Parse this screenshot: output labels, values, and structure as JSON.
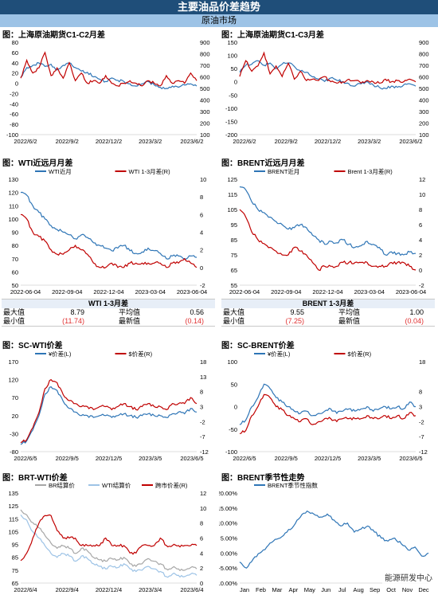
{
  "header": {
    "title": "主要油品价差趋势",
    "subtitle": "原油市场"
  },
  "colors": {
    "blue": "#2e75b6",
    "red": "#c00000",
    "lightblue": "#9dc3e6",
    "gray": "#a6a6a6",
    "header_bg": "#1f4e79",
    "subheader_bg": "#9dc3e6"
  },
  "stats": [
    {
      "title": "WTI 1-3月差",
      "max_label": "最大值",
      "max": "8.79",
      "avg_label": "平均值",
      "avg": "0.56",
      "min_label": "最小值",
      "min": "(11.74)",
      "latest_label": "最新值",
      "latest": "(0.14)"
    },
    {
      "title": "BRENT 1-3月差",
      "max_label": "最大值",
      "max": "9.55",
      "avg_label": "平均值",
      "avg": "1.00",
      "min_label": "最小值",
      "min": "(7.25)",
      "latest_label": "最新值",
      "latest": "(0.04)"
    }
  ],
  "chart_data": [
    {
      "title": "图：上海原油期货C1-C2月差",
      "type": "line",
      "xticks": [
        "2022/6/2",
        "2022/9/2",
        "2022/12/2",
        "2023/3/2",
        "2023/6/2"
      ],
      "yticks_left": [
        "80",
        "60",
        "40",
        "20",
        "0",
        "-20",
        "-40",
        "-60",
        "-80",
        "-100"
      ],
      "ylim_left": [
        -100,
        80
      ],
      "yticks_right": [
        "900",
        "800",
        "700",
        "600",
        "500",
        "400",
        "300",
        "200",
        "100"
      ],
      "ylim_right": [
        100,
        900
      ],
      "series": [
        {
          "axis": "right",
          "color": "#2e75b6",
          "values": [
            600,
            680,
            700,
            720,
            690,
            710,
            660,
            700,
            720,
            680,
            650,
            640,
            600,
            580,
            560,
            590,
            570,
            560,
            540,
            520,
            540,
            560,
            530,
            510,
            500,
            520,
            510,
            530,
            540,
            520
          ]
        },
        {
          "axis": "left",
          "color": "#c00000",
          "values": [
            10,
            45,
            20,
            30,
            60,
            15,
            30,
            10,
            40,
            5,
            20,
            0,
            5,
            0,
            15,
            0,
            -5,
            0,
            5,
            0,
            -5,
            5,
            0,
            -5,
            15,
            0,
            5,
            0,
            20,
            5
          ]
        }
      ]
    },
    {
      "title": "图：上海原油期货C1-C3月差",
      "type": "line",
      "xticks": [
        "2022/6/2",
        "2022/9/2",
        "2022/12/2",
        "2023/3/2",
        "2023/6/2"
      ],
      "yticks_left": [
        "150",
        "100",
        "50",
        "0",
        "-50",
        "-100",
        "-150",
        "-200"
      ],
      "ylim_left": [
        -200,
        150
      ],
      "yticks_right": [
        "900",
        "800",
        "700",
        "600",
        "500",
        "400",
        "300",
        "200",
        "100"
      ],
      "ylim_right": [
        100,
        900
      ],
      "series": [
        {
          "axis": "right",
          "color": "#2e75b6",
          "values": [
            640,
            700,
            710,
            740,
            700,
            720,
            670,
            710,
            720,
            690,
            650,
            640,
            600,
            580,
            560,
            590,
            570,
            560,
            540,
            520,
            540,
            560,
            530,
            510,
            500,
            520,
            510,
            530,
            540,
            520
          ]
        },
        {
          "axis": "left",
          "color": "#c00000",
          "values": [
            20,
            80,
            40,
            60,
            110,
            30,
            60,
            20,
            70,
            10,
            40,
            5,
            10,
            5,
            20,
            0,
            -5,
            0,
            10,
            5,
            -5,
            5,
            0,
            -5,
            10,
            0,
            5,
            0,
            10,
            0
          ]
        }
      ]
    },
    {
      "title": "图：WTI近远月月差",
      "type": "line",
      "legend": [
        "WTI近月",
        "WTI 1-3月差(R)"
      ],
      "xticks": [
        "2022-06-04",
        "2022-09-04",
        "2022-12-04",
        "2023-03-04",
        "2023-06-04"
      ],
      "yticks_left": [
        "130",
        "120",
        "110",
        "100",
        "90",
        "80",
        "70",
        "60",
        "50"
      ],
      "ylim_left": [
        50,
        130
      ],
      "yticks_right": [
        "10",
        "8",
        "6",
        "4",
        "2",
        "0",
        "-2"
      ],
      "ylim_right": [
        -2,
        10
      ],
      "series": [
        {
          "name": "WTI近月",
          "axis": "left",
          "color": "#2e75b6",
          "values": [
            120,
            118,
            110,
            105,
            100,
            95,
            92,
            90,
            88,
            85,
            88,
            86,
            82,
            80,
            78,
            76,
            78,
            80,
            76,
            74,
            75,
            78,
            76,
            74,
            70,
            72,
            72,
            70,
            72,
            71
          ]
        },
        {
          "name": "WTI 1-3月差(R)",
          "axis": "right",
          "color": "#c00000",
          "values": [
            6,
            5.5,
            4,
            3.5,
            3,
            2,
            1.5,
            1.5,
            2,
            2.5,
            2,
            1.5,
            0.5,
            0,
            0,
            0.5,
            0,
            0,
            0.5,
            0.5,
            0.5,
            0.5,
            0.5,
            0.5,
            0,
            0.5,
            0.5,
            1,
            0.5,
            0
          ]
        }
      ]
    },
    {
      "title": "图：BRENT近远月月差",
      "type": "line",
      "legend": [
        "BRENT近月",
        "Brent 1-3月差(R)"
      ],
      "xticks": [
        "2022-06-04",
        "2022-09-04",
        "2022-12-04",
        "2023-03-04",
        "2023-06-04"
      ],
      "yticks_left": [
        "125",
        "115",
        "105",
        "95",
        "85",
        "75",
        "65",
        "55"
      ],
      "ylim_left": [
        55,
        125
      ],
      "yticks_right": [
        "12",
        "10",
        "8",
        "6",
        "4",
        "2",
        "0",
        "-2"
      ],
      "ylim_right": [
        -2,
        12
      ],
      "series": [
        {
          "name": "BRENT近月",
          "axis": "left",
          "color": "#2e75b6",
          "values": [
            120,
            118,
            110,
            105,
            103,
            100,
            97,
            95,
            92,
            93,
            95,
            93,
            88,
            85,
            82,
            84,
            83,
            85,
            82,
            80,
            81,
            84,
            82,
            80,
            75,
            77,
            76,
            75,
            77,
            76
          ]
        },
        {
          "name": "Brent 1-3月差(R)",
          "axis": "right",
          "color": "#c00000",
          "values": [
            8,
            7,
            5,
            4,
            3.5,
            3,
            2.5,
            2,
            2,
            3,
            2.5,
            2,
            1,
            0,
            0.5,
            0.5,
            0.5,
            1,
            1,
            1,
            1,
            1,
            0.5,
            0.5,
            0.5,
            1,
            1,
            1,
            0.5,
            0
          ]
        }
      ]
    },
    {
      "title": "图：SC-WTI价差",
      "type": "line",
      "legend": [
        "¥价差(L)",
        "$价差(R)"
      ],
      "xticks": [
        "2022/6/5",
        "2022/9/5",
        "2022/12/5",
        "2023/3/5",
        "2023/6/5"
      ],
      "yticks_left": [
        "170",
        "120",
        "70",
        "20",
        "-30",
        "-80"
      ],
      "ylim_left": [
        -80,
        170
      ],
      "yticks_right": [
        "18",
        "13",
        "8",
        "3",
        "-2",
        "-7",
        "-12"
      ],
      "ylim_right": [
        -12,
        18
      ],
      "series": [
        {
          "name": "¥价差(L)",
          "axis": "left",
          "color": "#2e75b6",
          "values": [
            -60,
            -50,
            -20,
            20,
            80,
            100,
            90,
            60,
            40,
            30,
            20,
            20,
            15,
            20,
            20,
            15,
            20,
            25,
            20,
            15,
            20,
            25,
            20,
            20,
            15,
            25,
            30,
            25,
            40,
            30
          ]
        },
        {
          "name": "$价差(R)",
          "axis": "right",
          "color": "#c00000",
          "values": [
            -9,
            -8,
            -4,
            1,
            9,
            12,
            11,
            7,
            5,
            4,
            3,
            3,
            2,
            3,
            3,
            2,
            3,
            4,
            3,
            2,
            3,
            4,
            3,
            3,
            2,
            4,
            4,
            4,
            6,
            4
          ]
        }
      ]
    },
    {
      "title": "图：SC-BRENT价差",
      "type": "line",
      "legend": [
        "¥价差(L)",
        "$价差(R)"
      ],
      "xticks": [
        "2022/6/5",
        "2022/9/5",
        "2022/12/5",
        "2023/3/5",
        "2023/6/5"
      ],
      "yticks_left": [
        "100",
        "50",
        "0",
        "-50",
        "-100"
      ],
      "ylim_left": [
        -100,
        100
      ],
      "yticks_right": [
        "18",
        "8",
        "3",
        "-2",
        "-7",
        "-12"
      ],
      "ylim_right": [
        -12,
        18
      ],
      "series": [
        {
          "name": "¥价差(L)",
          "axis": "left",
          "color": "#2e75b6",
          "values": [
            -40,
            -30,
            0,
            20,
            50,
            40,
            20,
            10,
            0,
            -10,
            -15,
            -10,
            -20,
            -15,
            -10,
            -5,
            -15,
            -10,
            -5,
            -10,
            -5,
            0,
            -10,
            -5,
            0,
            -5,
            0,
            -5,
            10,
            0
          ]
        },
        {
          "name": "$价差(R)",
          "axis": "right",
          "color": "#c00000",
          "values": [
            -6,
            -5,
            0,
            3,
            7,
            6,
            3,
            2,
            0,
            -1,
            -2,
            -1,
            -3,
            -2,
            -1,
            -1,
            -2,
            -1,
            -1,
            -1,
            -1,
            0,
            -1,
            -1,
            0,
            -1,
            0,
            -1,
            1,
            0
          ]
        }
      ]
    },
    {
      "title": "图：BRT-WTI价差",
      "type": "line",
      "legend": [
        "BR结算价",
        "WTI结算价",
        "跨市价差(R)"
      ],
      "xticks": [
        "2022/6/4",
        "2022/9/4",
        "2022/12/4",
        "2023/3/4",
        "2023/6/4"
      ],
      "yticks_left": [
        "135",
        "125",
        "115",
        "105",
        "95",
        "85",
        "75",
        "65"
      ],
      "ylim_left": [
        65,
        135
      ],
      "yticks_right": [
        "12",
        "10",
        "8",
        "6",
        "4",
        "2",
        "0"
      ],
      "ylim_right": [
        0,
        12
      ],
      "series": [
        {
          "name": "BR结算价",
          "axis": "left",
          "color": "#a6a6a6",
          "values": [
            122,
            118,
            112,
            108,
            102,
            96,
            92,
            94,
            92,
            88,
            92,
            90,
            85,
            83,
            82,
            84,
            83,
            85,
            80,
            78,
            80,
            84,
            82,
            80,
            76,
            77,
            76,
            75,
            77,
            76
          ]
        },
        {
          "name": "WTI结算价",
          "axis": "left",
          "color": "#9dc3e6",
          "values": [
            118,
            114,
            105,
            100,
            94,
            88,
            85,
            88,
            86,
            82,
            86,
            84,
            80,
            78,
            76,
            78,
            77,
            80,
            76,
            74,
            75,
            78,
            76,
            74,
            70,
            72,
            71,
            70,
            72,
            71
          ]
        },
        {
          "name": "跨市价差(R)",
          "axis": "right",
          "color": "#c00000",
          "values": [
            3,
            4,
            6,
            8,
            9,
            9,
            7,
            6,
            6,
            6,
            5,
            5,
            5,
            5,
            6,
            5,
            5,
            5,
            4,
            4,
            5,
            5,
            5,
            6,
            5,
            5,
            5,
            5,
            5,
            5
          ]
        }
      ]
    },
    {
      "title": "图：BRENT季节性走势",
      "type": "line",
      "legend": [
        "BRENT季节性指数"
      ],
      "xticks": [
        "Jan",
        "Feb",
        "Mar",
        "Apr",
        "May",
        "Jun",
        "Jul",
        "Aug",
        "Sep",
        "Oct",
        "Nov",
        "Dec"
      ],
      "yticks_left": [
        "20.00%",
        "15.00%",
        "10.00%",
        "5.00%",
        "0.00%",
        "-5.00%",
        "-10.00%"
      ],
      "ylim_left": [
        -10,
        20
      ],
      "series": [
        {
          "name": "BRENT季节性指数",
          "axis": "left",
          "color": "#2e75b6",
          "values": [
            -3,
            -5,
            -2,
            0,
            2,
            4,
            5,
            7,
            9,
            12,
            14,
            13,
            12,
            13,
            11,
            9,
            10,
            7,
            8,
            9,
            7,
            5,
            4,
            5,
            3,
            1,
            2,
            -1,
            0
          ]
        }
      ]
    }
  ],
  "watermark": "能源研发中心"
}
